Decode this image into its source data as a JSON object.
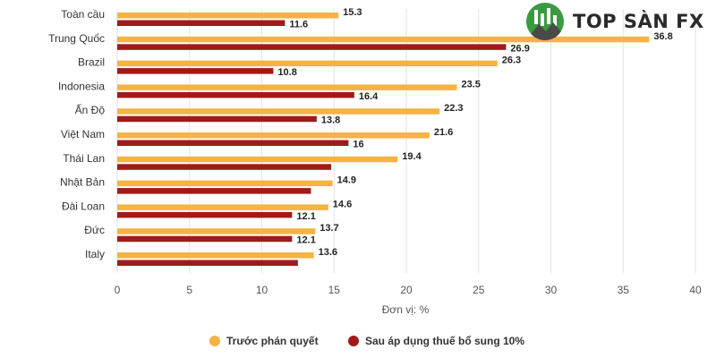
{
  "logo": {
    "text": "TOP SÀN FX"
  },
  "chart_data": {
    "type": "bar",
    "orientation": "horizontal",
    "categories": [
      "Toàn cầu",
      "Trung Quốc",
      "Brazil",
      "Indonesia",
      "Ấn Độ",
      "Việt Nam",
      "Thái Lan",
      "Nhật Bản",
      "Đài Loan",
      "Đức",
      "Italy"
    ],
    "series": [
      {
        "name": "Trước phán quyết",
        "color": "#f5b342",
        "values": [
          15.3,
          36.8,
          26.3,
          23.5,
          22.3,
          21.6,
          19.4,
          14.9,
          14.6,
          13.7,
          13.6
        ],
        "labels": [
          "15.3",
          "36.8",
          "26.3",
          "23.5",
          "22.3",
          "21.6",
          "19.4",
          "14.9",
          "14.6",
          "13.7",
          "13.6"
        ]
      },
      {
        "name": "Sau áp dụng thuế bổ sung 10%",
        "color": "#a31919",
        "values": [
          11.6,
          26.9,
          10.8,
          16.4,
          13.8,
          16,
          14.8,
          13.4,
          12.1,
          12.1,
          12.5
        ],
        "labels": [
          "11.6",
          "26.9",
          "10.8",
          "16.4",
          "13.8",
          "16",
          "",
          "",
          "12.1",
          "12.1",
          ""
        ]
      }
    ],
    "xlabel": "Đơn vị: %",
    "xlim": [
      0,
      40
    ],
    "xticks": [
      0,
      5,
      10,
      15,
      20,
      25,
      30,
      35,
      40
    ],
    "grid": true,
    "legend_position": "bottom"
  }
}
